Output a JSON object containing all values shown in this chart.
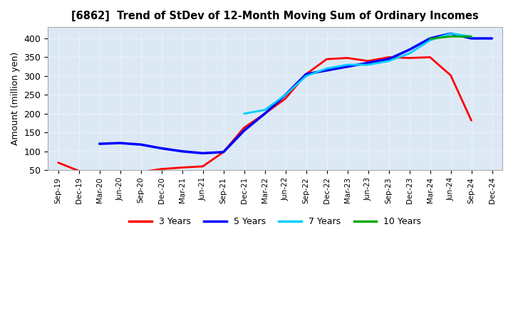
{
  "title": "[6862]  Trend of StDev of 12-Month Moving Sum of Ordinary Incomes",
  "ylabel": "Amount (million yen)",
  "background_color": "#ffffff",
  "plot_bg_color": "#dce9f5",
  "grid_color": "#ffffff",
  "ylim": [
    50,
    430
  ],
  "yticks": [
    50,
    100,
    150,
    200,
    250,
    300,
    350,
    400
  ],
  "series": {
    "3 Years": {
      "color": "#ff0000",
      "linewidth": 2.0,
      "indices": [
        0,
        1,
        2,
        3,
        4,
        5,
        6,
        7,
        8,
        9,
        10,
        11,
        12,
        13,
        14,
        15,
        16,
        17,
        18,
        19,
        20
      ],
      "values": [
        70,
        48,
        46,
        44,
        45,
        53,
        57,
        60,
        98,
        163,
        200,
        240,
        305,
        345,
        348,
        340,
        350,
        348,
        350,
        302,
        182
      ]
    },
    "5 Years": {
      "color": "#0000ff",
      "linewidth": 2.5,
      "indices": [
        2,
        3,
        4,
        5,
        6,
        7,
        8,
        9,
        10,
        11,
        12,
        13,
        14,
        15,
        16,
        17,
        18,
        19,
        20,
        21
      ],
      "values": [
        120,
        122,
        118,
        108,
        100,
        95,
        98,
        155,
        200,
        250,
        305,
        315,
        325,
        335,
        345,
        370,
        400,
        413,
        400,
        400
      ]
    },
    "7 Years": {
      "color": "#00ccff",
      "linewidth": 2.0,
      "indices": [
        9,
        10,
        11,
        12,
        13,
        14,
        15,
        16,
        17,
        18,
        19,
        20
      ],
      "values": [
        200,
        210,
        250,
        300,
        320,
        330,
        330,
        340,
        360,
        395,
        413,
        405
      ]
    },
    "10 Years": {
      "color": "#00aa00",
      "linewidth": 2.0,
      "indices": [
        18,
        19,
        20
      ],
      "values": [
        399,
        405,
        405
      ]
    }
  },
  "legend_entries": [
    "3 Years",
    "5 Years",
    "7 Years",
    "10 Years"
  ],
  "legend_colors": [
    "#ff0000",
    "#0000ff",
    "#00ccff",
    "#00aa00"
  ],
  "xtick_labels": [
    "Sep-19",
    "Dec-19",
    "Mar-20",
    "Jun-20",
    "Sep-20",
    "Dec-20",
    "Mar-21",
    "Jun-21",
    "Sep-21",
    "Dec-21",
    "Mar-22",
    "Jun-22",
    "Sep-22",
    "Dec-22",
    "Mar-23",
    "Jun-23",
    "Sep-23",
    "Dec-23",
    "Mar-24",
    "Jun-24",
    "Sep-24",
    "Dec-24"
  ]
}
